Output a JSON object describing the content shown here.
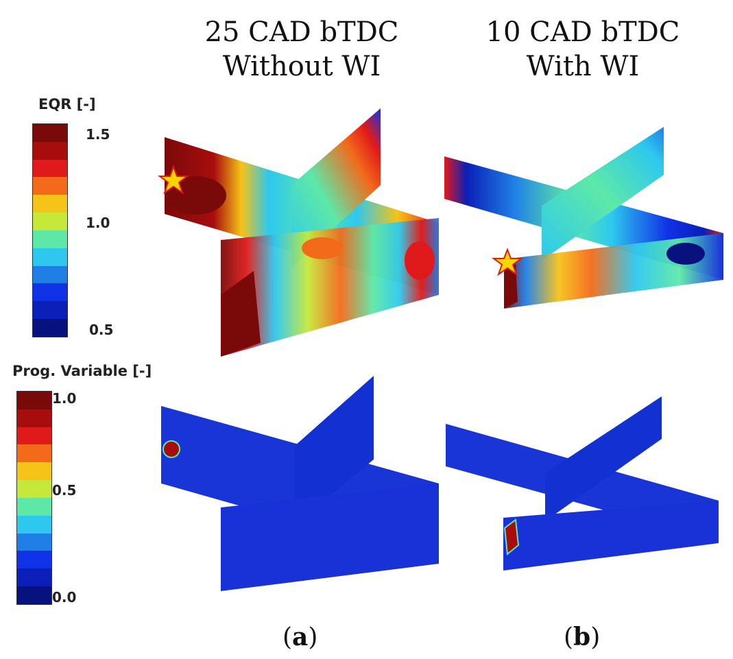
{
  "columns": [
    {
      "line1": "25 CAD bTDC",
      "line2": "Without WI"
    },
    {
      "line1": "10 CAD bTDC",
      "line2": "With WI"
    }
  ],
  "legends": {
    "eqr": {
      "title": "EQR [-]",
      "ticks": {
        "top": "1.5",
        "mid": "1.0",
        "bottom": "0.5"
      }
    },
    "prog": {
      "title": "Prog. Variable [-]",
      "ticks": {
        "top": "1.0",
        "mid": "0.5",
        "bottom": "0.0"
      }
    }
  },
  "colormap": [
    "#7a0a0a",
    "#a80d0d",
    "#e01a1a",
    "#f26a1a",
    "#f6c318",
    "#c5e83a",
    "#5de8a8",
    "#2ec8ee",
    "#1f7fe6",
    "#1032e6",
    "#0a1fb8",
    "#07127e"
  ],
  "panel_labels": {
    "a": {
      "open": "(",
      "letter": "a",
      "close": ")"
    },
    "b": {
      "open": "(",
      "letter": "b",
      "close": ")"
    }
  }
}
